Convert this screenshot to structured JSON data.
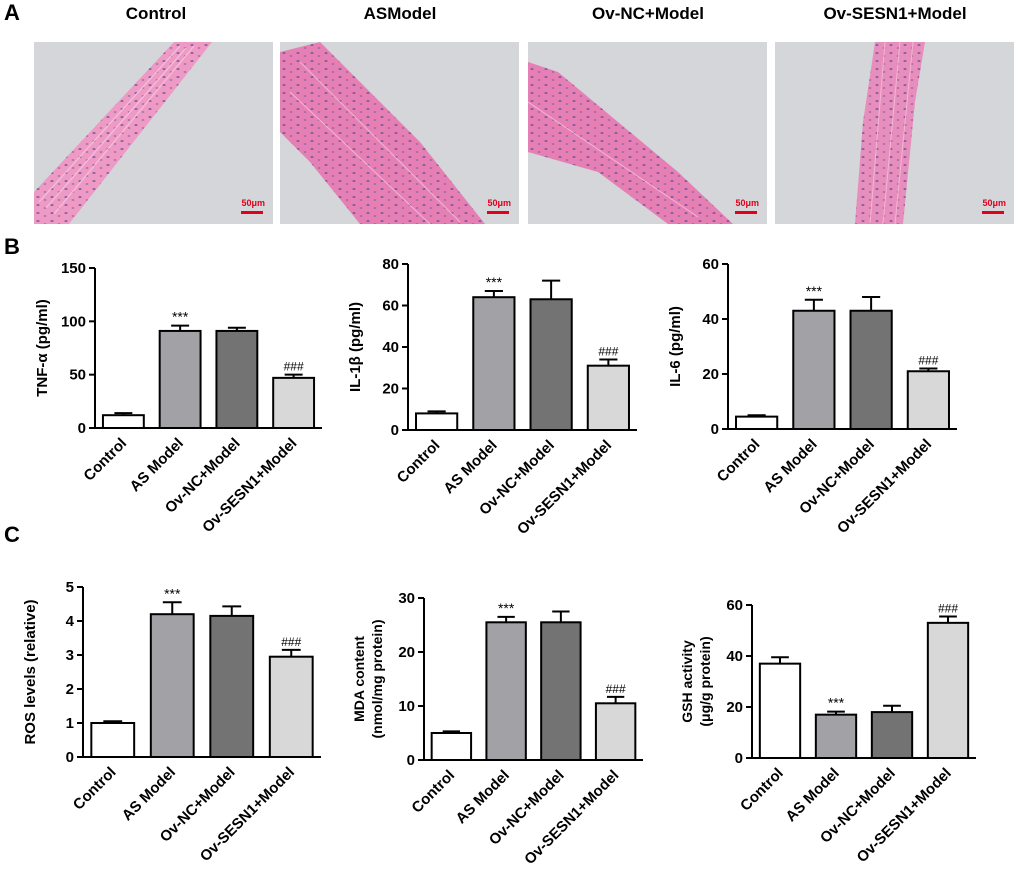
{
  "panels": {
    "a": "A",
    "b": "B",
    "c": "C"
  },
  "scale_bar": "50μm",
  "micrographs": [
    {
      "title": "Control"
    },
    {
      "title": "ASModel"
    },
    {
      "title": "Ov-NC+Model"
    },
    {
      "title": "Ov-SESN1+Model"
    }
  ],
  "colors": {
    "control": "#ffffff",
    "as_model": "#a1a1a6",
    "ov_nc": "#737373",
    "ov_sesn1": "#d8d8d8",
    "tissue": "#e389b8",
    "background": "#d4d6d9",
    "scale": "#e3001b"
  },
  "chart_data": [
    {
      "id": "tnf",
      "type": "bar",
      "ylabel": "TNF-α (pg/ml)",
      "categories": [
        "Control",
        "AS Model",
        "Ov-NC+Model",
        "Ov-SESN1+Model"
      ],
      "values": [
        12,
        91,
        91,
        47
      ],
      "errors": [
        2,
        5,
        3,
        3
      ],
      "annotations": [
        "",
        "***",
        "",
        "###"
      ],
      "ylim": [
        0,
        150
      ],
      "yticks": [
        "0",
        "50",
        "100",
        "150"
      ]
    },
    {
      "id": "il1b",
      "type": "bar",
      "ylabel": "IL-1β (pg/ml)",
      "categories": [
        "Control",
        "AS Model",
        "Ov-NC+Model",
        "Ov-SESN1+Model"
      ],
      "values": [
        8,
        64,
        63,
        31
      ],
      "errors": [
        1,
        3,
        9,
        3
      ],
      "annotations": [
        "",
        "***",
        "",
        "###"
      ],
      "ylim": [
        0,
        80
      ],
      "yticks": [
        "0",
        "20",
        "40",
        "60",
        "80"
      ]
    },
    {
      "id": "il6",
      "type": "bar",
      "ylabel": "IL-6 (pg/ml)",
      "categories": [
        "Control",
        "AS Model",
        "Ov-NC+Model",
        "Ov-SESN1+Model"
      ],
      "values": [
        4.5,
        43,
        43,
        21
      ],
      "errors": [
        0.5,
        4,
        5,
        1
      ],
      "annotations": [
        "",
        "***",
        "",
        "###"
      ],
      "ylim": [
        0,
        60
      ],
      "yticks": [
        "0",
        "20",
        "40",
        "60"
      ]
    },
    {
      "id": "ros",
      "type": "bar",
      "ylabel": "ROS levels (relative)",
      "categories": [
        "Control",
        "AS Model",
        "Ov-NC+Model",
        "Ov-SESN1+Model"
      ],
      "values": [
        1.0,
        4.2,
        4.15,
        2.95
      ],
      "errors": [
        0.05,
        0.35,
        0.28,
        0.2
      ],
      "annotations": [
        "",
        "***",
        "",
        "###"
      ],
      "ylim": [
        0,
        5
      ],
      "yticks": [
        "0",
        "1",
        "2",
        "3",
        "4",
        "5"
      ]
    },
    {
      "id": "mda",
      "type": "bar",
      "ylabel": "MDA content",
      "ylabel2": "(nmol/mg protein)",
      "categories": [
        "Control",
        "AS Model",
        "Ov-NC+Model",
        "Ov-SESN1+Model"
      ],
      "values": [
        5,
        25.5,
        25.5,
        10.5
      ],
      "errors": [
        0.3,
        1,
        2,
        1.2
      ],
      "annotations": [
        "",
        "***",
        "",
        "###"
      ],
      "ylim": [
        0,
        30
      ],
      "yticks": [
        "0",
        "10",
        "20",
        "30"
      ]
    },
    {
      "id": "gsh",
      "type": "bar",
      "ylabel": "GSH activity",
      "ylabel2": "(μg/g protein)",
      "categories": [
        "Control",
        "AS Model",
        "Ov-NC+Model",
        "Ov-SESN1+Model"
      ],
      "values": [
        37,
        17,
        18,
        53
      ],
      "errors": [
        2.5,
        1.2,
        2.5,
        2.5
      ],
      "annotations": [
        "",
        "***",
        "",
        "###"
      ],
      "ylim": [
        0,
        60
      ],
      "yticks": [
        "0",
        "20",
        "40",
        "60"
      ]
    }
  ]
}
